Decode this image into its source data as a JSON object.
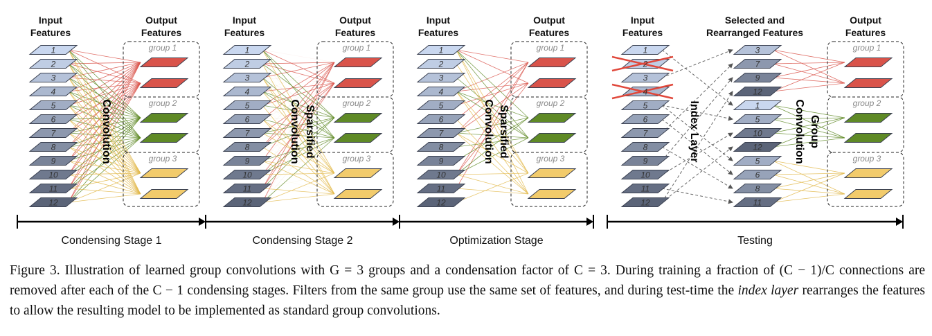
{
  "labels": {
    "input_features": [
      "Input",
      "Features"
    ],
    "output_features": [
      "Output",
      "Features"
    ],
    "selected_features": [
      "Selected and",
      "Rearranged Features"
    ],
    "group_names": [
      "group 1",
      "group 2",
      "group 3"
    ],
    "input_numbers": [
      "1",
      "2",
      "3",
      "4",
      "5",
      "6",
      "7",
      "8",
      "9",
      "10",
      "11",
      "12"
    ],
    "rearranged_numbers": [
      "3",
      "7",
      "9",
      "12",
      "1",
      "5",
      "10",
      "12",
      "5",
      "6",
      "8",
      "11"
    ],
    "conv_labels": {
      "stage1": [
        "Convolution"
      ],
      "stage2": [
        "Sparsified",
        "Convolution"
      ],
      "stage3": [
        "Sparsified",
        "Convolution"
      ],
      "index": [
        "Index Layer"
      ],
      "group": [
        "Group",
        "Convolution"
      ]
    },
    "stages": [
      "Condensing Stage 1",
      "Condensing Stage 2",
      "Optimization Stage",
      "Testing"
    ]
  },
  "colors": {
    "group1": "#d9534a",
    "group2": "#5f8a26",
    "group3": "#f2cb6b",
    "input_light": "#c9d7ef",
    "input_dark": "#5b6478"
  },
  "caption": {
    "part1": "Figure 3. Illustration of learned group convolutions with G = 3 groups and a condensation factor of C = 3. During training a fraction of (C − 1)/C connections are removed after each of the C − 1 condensing stages. Filters from the same group use the same set of features, and during test-time the ",
    "emph": "index layer",
    "part2": " rearranges the features to allow the resulting model to be implemented as standard group convolutions."
  }
}
